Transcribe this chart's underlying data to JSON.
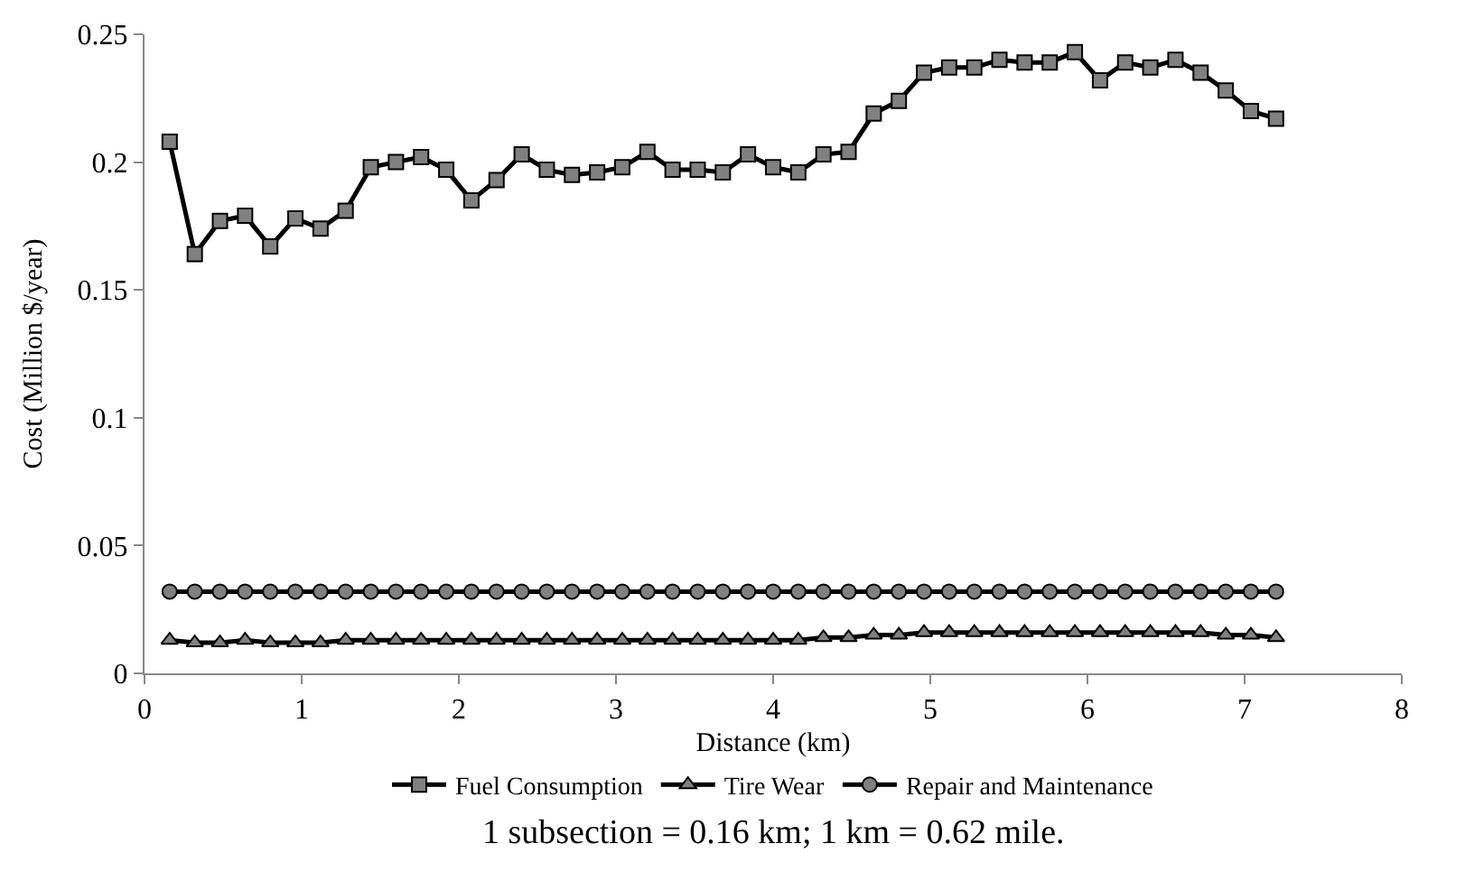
{
  "chart_data": {
    "type": "line",
    "xlabel": "Distance (km)",
    "ylabel": "Cost (Million $/year)",
    "x": [
      0.16,
      0.32,
      0.48,
      0.64,
      0.8,
      0.96,
      1.12,
      1.28,
      1.44,
      1.6,
      1.76,
      1.92,
      2.08,
      2.24,
      2.4,
      2.56,
      2.72,
      2.88,
      3.04,
      3.2,
      3.36,
      3.52,
      3.68,
      3.84,
      4.0,
      4.16,
      4.32,
      4.48,
      4.64,
      4.8,
      4.96,
      5.12,
      5.28,
      5.44,
      5.6,
      5.76,
      5.92,
      6.08,
      6.24,
      6.4,
      6.56,
      6.72,
      6.88,
      7.04,
      7.2
    ],
    "series": [
      {
        "name": "Fuel Consumption",
        "color": "#000000",
        "marker": "square",
        "values": [
          0.208,
          0.164,
          0.177,
          0.179,
          0.167,
          0.178,
          0.174,
          0.181,
          0.198,
          0.2,
          0.202,
          0.197,
          0.185,
          0.193,
          0.203,
          0.197,
          0.195,
          0.196,
          0.198,
          0.204,
          0.197,
          0.197,
          0.196,
          0.203,
          0.198,
          0.196,
          0.203,
          0.204,
          0.219,
          0.224,
          0.235,
          0.237,
          0.237,
          0.24,
          0.239,
          0.239,
          0.243,
          0.232,
          0.239,
          0.237,
          0.24,
          0.235,
          0.228,
          0.22,
          0.217
        ]
      },
      {
        "name": "Tire Wear",
        "color": "#000000",
        "marker": "triangle",
        "values": [
          0.013,
          0.012,
          0.012,
          0.013,
          0.012,
          0.012,
          0.012,
          0.013,
          0.013,
          0.013,
          0.013,
          0.013,
          0.013,
          0.013,
          0.013,
          0.013,
          0.013,
          0.013,
          0.013,
          0.013,
          0.013,
          0.013,
          0.013,
          0.013,
          0.013,
          0.013,
          0.014,
          0.014,
          0.015,
          0.015,
          0.016,
          0.016,
          0.016,
          0.016,
          0.016,
          0.016,
          0.016,
          0.016,
          0.016,
          0.016,
          0.016,
          0.016,
          0.015,
          0.015,
          0.014
        ]
      },
      {
        "name": "Repair and Maintenance",
        "color": "#000000",
        "marker": "circle",
        "values": [
          0.032,
          0.032,
          0.032,
          0.032,
          0.032,
          0.032,
          0.032,
          0.032,
          0.032,
          0.032,
          0.032,
          0.032,
          0.032,
          0.032,
          0.032,
          0.032,
          0.032,
          0.032,
          0.032,
          0.032,
          0.032,
          0.032,
          0.032,
          0.032,
          0.032,
          0.032,
          0.032,
          0.032,
          0.032,
          0.032,
          0.032,
          0.032,
          0.032,
          0.032,
          0.032,
          0.032,
          0.032,
          0.032,
          0.032,
          0.032,
          0.032,
          0.032,
          0.032,
          0.032,
          0.032
        ]
      }
    ],
    "xlim": [
      0,
      8
    ],
    "xticks": [
      0,
      1,
      2,
      3,
      4,
      5,
      6,
      7,
      8
    ],
    "ylim": [
      0,
      0.25
    ],
    "yticks": [
      {
        "value": 0,
        "label": "0"
      },
      0.05,
      0.1,
      0.15,
      0.2,
      0.25
    ],
    "grid": false,
    "legend": "bottom",
    "annotations": [
      "1 subsection = 0.16 km; 1 km = 0.62 mile."
    ]
  }
}
